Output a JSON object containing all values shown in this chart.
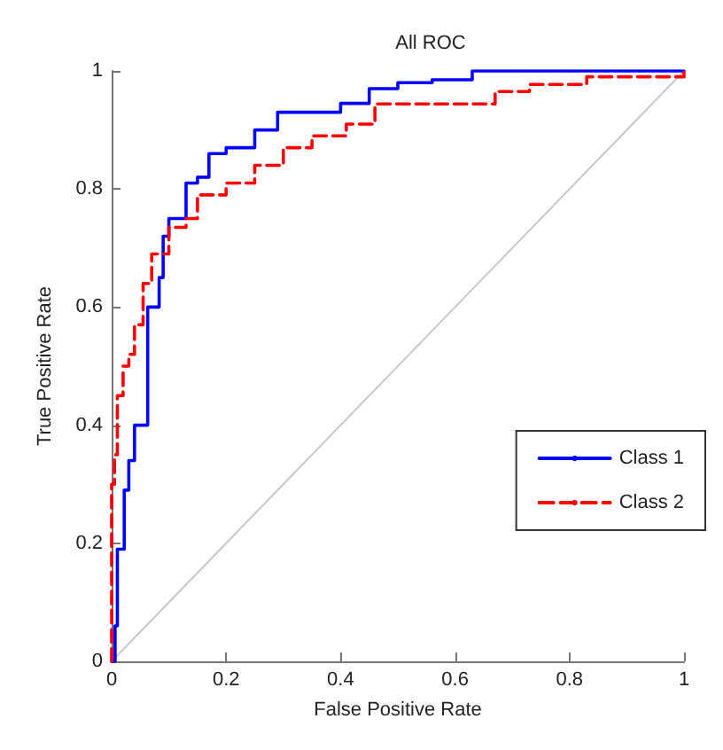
{
  "chart_data": {
    "type": "step",
    "title": "All ROC",
    "xlabel": "False Positive Rate",
    "ylabel": "True Positive Rate",
    "xlim": [
      0,
      1
    ],
    "ylim": [
      0,
      1
    ],
    "xticks": [
      0,
      0.2,
      0.4,
      0.6,
      0.8,
      1
    ],
    "yticks": [
      0,
      0.2,
      0.4,
      0.6,
      0.8,
      1
    ],
    "grid": false,
    "legend": "right",
    "marker": "none",
    "series": [
      {
        "name": "Class 1",
        "color": "#0000ff",
        "line_style": "solid",
        "x": [
          0,
          0.006,
          0.01,
          0.022,
          0.03,
          0.04,
          0.063,
          0.083,
          0.09,
          0.1,
          0.13,
          0.15,
          0.17,
          0.2,
          0.25,
          0.29,
          0.4,
          0.45,
          0.5,
          0.56,
          0.63,
          1
        ],
        "values": [
          0,
          0.06,
          0.19,
          0.29,
          0.34,
          0.4,
          0.6,
          0.65,
          0.72,
          0.75,
          0.81,
          0.82,
          0.86,
          0.87,
          0.9,
          0.93,
          0.945,
          0.97,
          0.98,
          0.985,
          1,
          1
        ]
      },
      {
        "name": "Class 2",
        "color": "#ff0000",
        "line_style": "dashed",
        "x": [
          0,
          0,
          0.005,
          0.01,
          0.02,
          0.03,
          0.04,
          0.055,
          0.07,
          0.1,
          0.13,
          0.15,
          0.2,
          0.25,
          0.3,
          0.35,
          0.41,
          0.46,
          0.67,
          0.73,
          0.83,
          1
        ],
        "values": [
          0,
          0.3,
          0.35,
          0.45,
          0.5,
          0.52,
          0.57,
          0.64,
          0.69,
          0.735,
          0.75,
          0.79,
          0.81,
          0.84,
          0.87,
          0.89,
          0.91,
          0.944,
          0.965,
          0.977,
          0.99,
          1
        ]
      },
      {
        "type": "line",
        "color": "#c8c8c8",
        "line_style": "solid",
        "x": [
          0,
          1
        ],
        "values": [
          0,
          1
        ]
      }
    ]
  }
}
